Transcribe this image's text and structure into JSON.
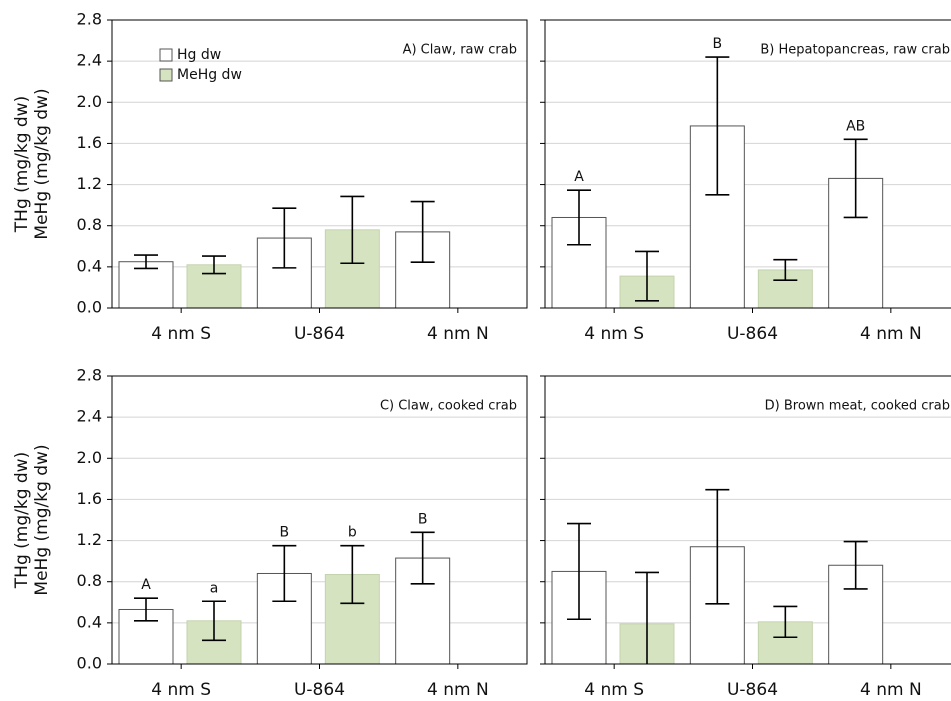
{
  "chart_data": [
    {
      "type": "bar",
      "title": "A) Claw, raw crab",
      "ylabel": [
        "THg (mg/kg dw)",
        "MeHg (mg/kg dw)"
      ],
      "categories": [
        "4 nm S",
        "U-864",
        "4 nm N"
      ],
      "series": [
        {
          "name": "Hg dw",
          "color": "#ffffff",
          "values": [
            0.45,
            0.68,
            0.74
          ],
          "errors": [
            0.065,
            0.29,
            0.295
          ]
        },
        {
          "name": "MeHg dw",
          "color": "#d5e3c0",
          "values": [
            0.42,
            0.76,
            null
          ],
          "errors": [
            0.085,
            0.325,
            null
          ]
        }
      ],
      "legend": "upper left",
      "show_ytick_labels": true,
      "ylim": [
        0,
        2.8
      ],
      "yticks": [
        {
          "value": 0,
          "label": "0.0"
        },
        0.4,
        0.8,
        1.2,
        1.6,
        {
          "value": 2,
          "label": "2.0"
        },
        2.4,
        2.8
      ],
      "grid": true
    },
    {
      "type": "bar",
      "title": "B) Hepatopancreas, raw crab",
      "categories": [
        "4 nm S",
        "U-864",
        "4 nm N"
      ],
      "series": [
        {
          "color": "#ffffff",
          "values": [
            0.88,
            1.77,
            1.26
          ],
          "errors": [
            0.265,
            0.67,
            0.38
          ],
          "labels": [
            "A",
            "B",
            "AB"
          ]
        },
        {
          "color": "#d5e3c0",
          "values": [
            0.31,
            0.37,
            null
          ],
          "errors": [
            0.24,
            0.1,
            null
          ]
        }
      ],
      "show_ytick_labels": false,
      "ylim": [
        0,
        2.8
      ],
      "yticks": [
        0,
        0.4,
        0.8,
        1.2,
        1.6,
        2,
        2.4,
        2.8
      ],
      "grid": true
    },
    {
      "type": "bar",
      "title": "C) Claw, cooked crab",
      "ylabel": [
        "THg (mg/kg dw)",
        "MeHg (mg/kg dw)"
      ],
      "categories": [
        "4 nm S",
        "U-864",
        "4 nm N"
      ],
      "series": [
        {
          "color": "#ffffff",
          "values": [
            0.53,
            0.88,
            1.03
          ],
          "errors": [
            0.11,
            0.27,
            0.25
          ],
          "labels": [
            "A",
            "B",
            "B"
          ]
        },
        {
          "color": "#d5e3c0",
          "values": [
            0.42,
            0.87,
            null
          ],
          "errors": [
            0.19,
            0.28,
            null
          ],
          "labels": [
            "a",
            "b",
            null
          ]
        }
      ],
      "show_ytick_labels": true,
      "ylim": [
        0,
        2.8
      ],
      "yticks": [
        {
          "value": 0,
          "label": "0.0"
        },
        0.4,
        0.8,
        1.2,
        1.6,
        {
          "value": 2,
          "label": "2.0"
        },
        2.4,
        2.8
      ],
      "grid": true
    },
    {
      "type": "bar",
      "title": "D) Brown meat, cooked crab",
      "categories": [
        "4 nm S",
        "U-864",
        "4 nm N"
      ],
      "series": [
        {
          "color": "#ffffff",
          "values": [
            0.9,
            1.14,
            0.96
          ],
          "errors": [
            0.465,
            0.555,
            0.23
          ]
        },
        {
          "color": "#d5e3c0",
          "values": [
            0.39,
            0.41,
            null
          ],
          "errors": [
            0.5,
            0.15,
            null
          ]
        }
      ],
      "show_ytick_labels": false,
      "ylim": [
        0,
        2.8
      ],
      "yticks": [
        0,
        0.4,
        0.8,
        1.2,
        1.6,
        2,
        2.4,
        2.8
      ],
      "grid": true
    }
  ]
}
